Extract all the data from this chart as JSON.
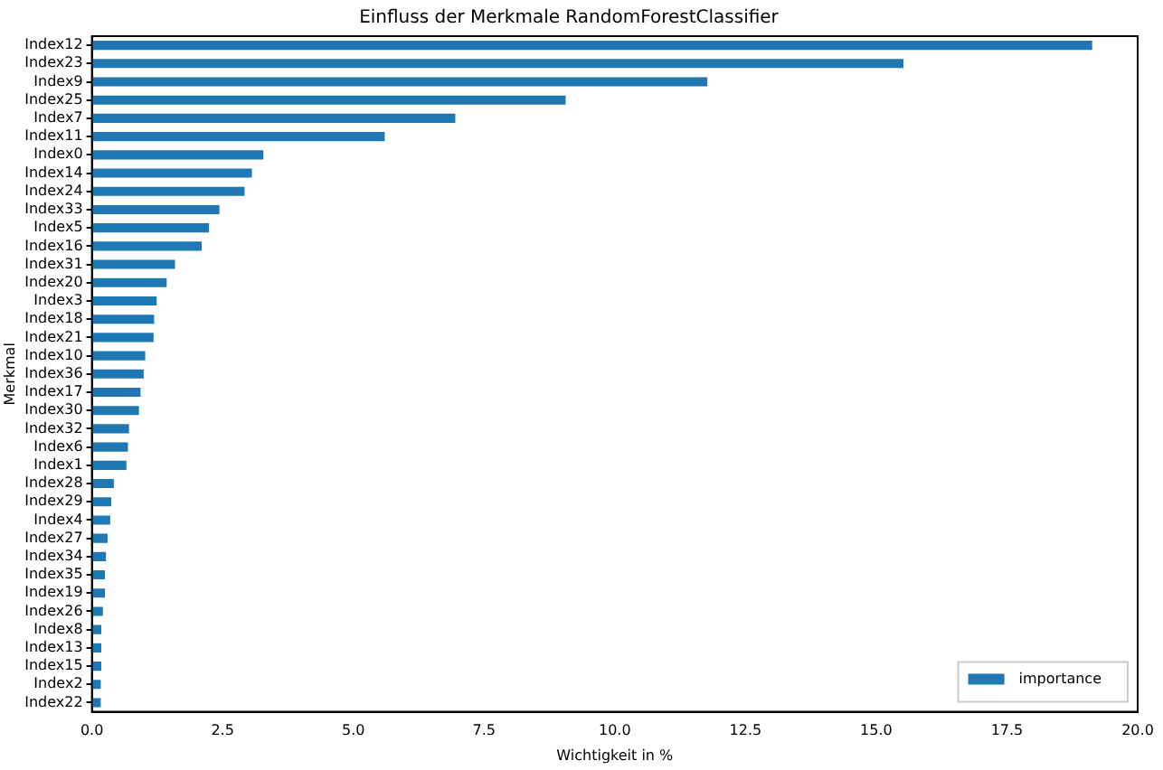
{
  "chart_data": {
    "type": "bar",
    "orientation": "horizontal",
    "title": "Einfluss der Merkmale RandomForestClassifier",
    "xlabel": "Wichtigkeit in %",
    "ylabel": "Merkmal",
    "categories": [
      "Index12",
      "Index23",
      "Index9",
      "Index25",
      "Index7",
      "Index11",
      "Index0",
      "Index14",
      "Index24",
      "Index33",
      "Index5",
      "Index16",
      "Index31",
      "Index20",
      "Index3",
      "Index18",
      "Index21",
      "Index10",
      "Index36",
      "Index17",
      "Index30",
      "Index32",
      "Index6",
      "Index1",
      "Index28",
      "Index29",
      "Index4",
      "Index27",
      "Index34",
      "Index35",
      "Index19",
      "Index26",
      "Index8",
      "Index13",
      "Index15",
      "Index2",
      "Index22"
    ],
    "series": [
      {
        "name": "importance",
        "color": "#1f77b4",
        "values": [
          19.13,
          15.52,
          11.77,
          9.06,
          6.95,
          5.6,
          3.28,
          3.06,
          2.92,
          2.44,
          2.24,
          2.1,
          1.59,
          1.43,
          1.24,
          1.19,
          1.18,
          1.02,
          0.99,
          0.93,
          0.9,
          0.71,
          0.69,
          0.66,
          0.42,
          0.37,
          0.35,
          0.3,
          0.27,
          0.25,
          0.25,
          0.21,
          0.18,
          0.18,
          0.18,
          0.17,
          0.17
        ]
      }
    ],
    "xlim": [
      0,
      20
    ],
    "xticks": [
      {
        "value": 0,
        "label": "0.0"
      },
      2.5,
      {
        "value": 5,
        "label": "5.0"
      },
      7.5,
      {
        "value": 10,
        "label": "10.0"
      },
      12.5,
      {
        "value": 15,
        "label": "15.0"
      },
      17.5,
      {
        "value": 20,
        "label": "20.0"
      }
    ],
    "grid": false,
    "legend": "bottom right"
  }
}
